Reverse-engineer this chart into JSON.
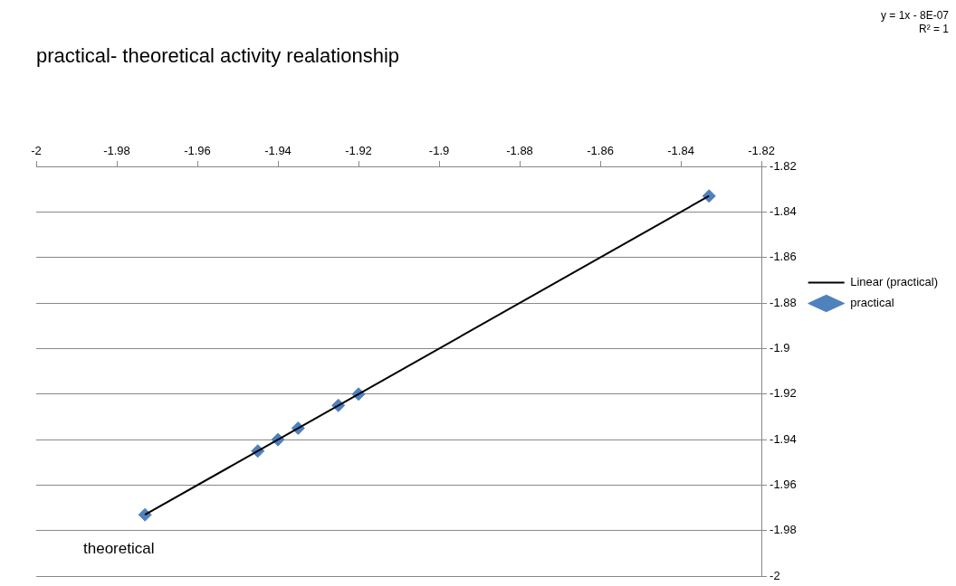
{
  "chart_data": {
    "type": "scatter",
    "title": "practical- theoretical activity realationship",
    "xlabel": "theoretical",
    "annotations": [
      "y = 1x - 8E-07",
      "R² = 1"
    ],
    "x": [
      -1.973,
      -1.945,
      -1.94,
      -1.935,
      -1.925,
      -1.92,
      -1.833
    ],
    "series": [
      {
        "name": "practical",
        "color": "#4f81bd",
        "marker": "diamond",
        "values": [
          -1.973,
          -1.945,
          -1.94,
          -1.935,
          -1.925,
          -1.92,
          -1.833
        ]
      },
      {
        "name": "Linear (practical)",
        "type": "line",
        "color": "#000000",
        "marker": "none",
        "line_style": "solid",
        "x": [
          -1.973,
          -1.833
        ],
        "values": [
          -1.973,
          -1.833
        ]
      }
    ],
    "xlim": [
      -2,
      -1.82
    ],
    "ylim": [
      -2,
      -1.82
    ],
    "xticks": [
      -2,
      -1.98,
      -1.96,
      -1.94,
      -1.92,
      -1.9,
      -1.88,
      -1.86,
      -1.84,
      -1.82
    ],
    "yticks": [
      -2,
      -1.98,
      -1.96,
      -1.94,
      -1.92,
      -1.9,
      -1.88,
      -1.86,
      -1.84,
      -1.82
    ],
    "grid": "y",
    "legend": "right"
  }
}
